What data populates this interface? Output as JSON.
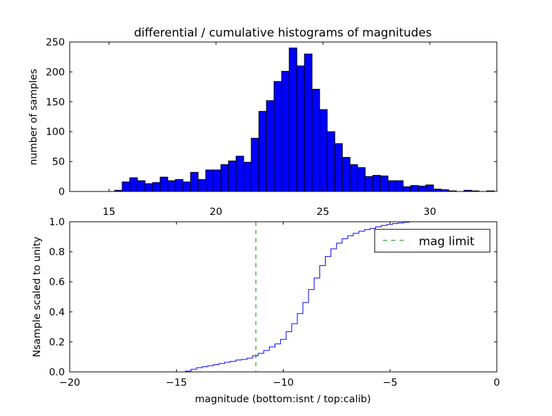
{
  "chart_data": [
    {
      "type": "bar",
      "title": "differential / cumulative histograms of magnitudes",
      "xlabel": "",
      "ylabel": "number of samples",
      "xlim": [
        13.16,
        33.13
      ],
      "ylim": [
        0,
        250
      ],
      "xticks": [
        15,
        20,
        25,
        30
      ],
      "yticks": [
        0,
        50,
        100,
        150,
        200,
        250
      ],
      "bin_start": 15.26,
      "bin_width": 0.355,
      "values": [
        2,
        16,
        23,
        18,
        13,
        15,
        24,
        18,
        20,
        16,
        32,
        20,
        36,
        36,
        45,
        51,
        59,
        49,
        89,
        134,
        152,
        184,
        201,
        240,
        210,
        230,
        171,
        137,
        100,
        80,
        57,
        45,
        40,
        25,
        27,
        26,
        18,
        18,
        8,
        10,
        9,
        11,
        4,
        3,
        1,
        0,
        2,
        1,
        0,
        1
      ],
      "color": "#0000ff",
      "grid": false
    },
    {
      "type": "line",
      "step": true,
      "xlabel": "magnitude (bottom:isnt / top:calib)",
      "ylabel": "Nsample scaled to unity",
      "xlim": [
        -20,
        0
      ],
      "ylim": [
        0,
        1
      ],
      "xticks": [
        -20,
        -15,
        -10,
        -5,
        0
      ],
      "xtick_labels": [
        "−20",
        "−15",
        "−10",
        "−5",
        "0"
      ],
      "yticks": [
        0.0,
        0.2,
        0.4,
        0.6,
        0.8,
        1.0
      ],
      "ytick_labels": [
        "0.0",
        "0.2",
        "0.4",
        "0.6",
        "0.8",
        "1.0"
      ],
      "step_start": -14.58,
      "step_width": 0.262,
      "values": [
        0.005,
        0.018,
        0.028,
        0.035,
        0.041,
        0.048,
        0.056,
        0.064,
        0.07,
        0.079,
        0.083,
        0.092,
        0.107,
        0.124,
        0.143,
        0.166,
        0.187,
        0.217,
        0.268,
        0.321,
        0.389,
        0.462,
        0.549,
        0.625,
        0.708,
        0.769,
        0.82,
        0.858,
        0.887,
        0.907,
        0.923,
        0.937,
        0.948,
        0.956,
        0.967,
        0.976,
        0.982,
        0.988,
        0.992,
        0.997,
        1.0
      ],
      "line_color": "#0000ff",
      "mag_limit": -11.28,
      "mag_limit_color": "#007f00",
      "legend": {
        "label": "mag limit",
        "placement": "top-right"
      },
      "grid": false
    }
  ]
}
